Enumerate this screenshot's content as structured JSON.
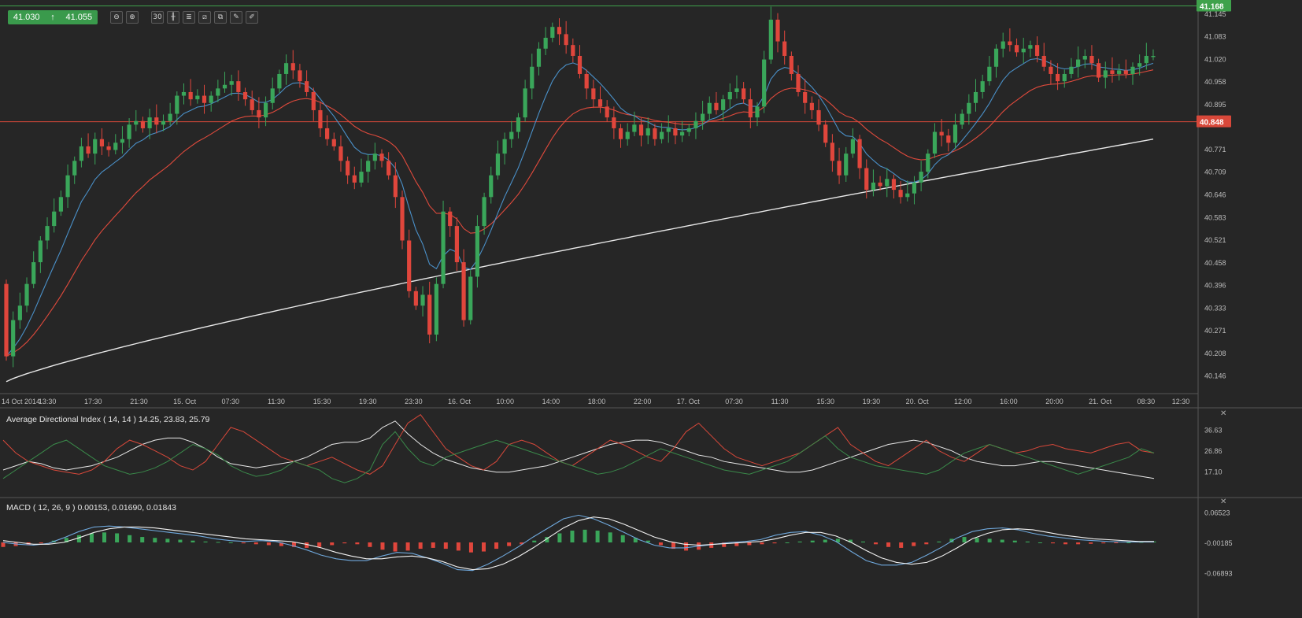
{
  "quote": {
    "bid": "41.030",
    "ask": "41.055",
    "direction_icon": "arrow-up-icon"
  },
  "toolbar": {
    "zoom_out": "−",
    "zoom_in": "+",
    "timeframe": "30",
    "chart_type_icon": "candles-icon",
    "indicators_icon": "indicators-icon",
    "drawing_icon": "draw-icon",
    "clone_icon": "copy-icon",
    "edit_icon": "edit-icon",
    "pen_icon": "pen-icon"
  },
  "colors": {
    "bg": "#262626",
    "bull": "#3aa65a",
    "bear": "#e0463c",
    "ema_fast": "#4a90c8",
    "ema_slow": "#e04a3c",
    "sma_long": "#e8e8e8",
    "hline_green": "#3fa24c",
    "hline_red": "#d8483a",
    "grid": "#3a3a3a"
  },
  "chart_data": [
    {
      "type": "candlestick",
      "title": "",
      "price_axis_ticks": [
        "41.145",
        "41.083",
        "41.020",
        "40.958",
        "40.895",
        "40.771",
        "40.709",
        "40.646",
        "40.583",
        "40.521",
        "40.458",
        "40.396",
        "40.333",
        "40.271",
        "40.208",
        "40.146"
      ],
      "time_axis_ticks": [
        "14 Oct 2014",
        "13:30",
        "17:30",
        "21:30",
        "15. Oct",
        "07:30",
        "11:30",
        "15:30",
        "19:30",
        "23:30",
        "16. Oct",
        "10:00",
        "14:00",
        "18:00",
        "22:00",
        "17. Oct",
        "07:30",
        "11:30",
        "15:30",
        "19:30",
        "20. Oct",
        "12:00",
        "16:00",
        "20:00",
        "21. Oct",
        "08:30",
        "12:30"
      ],
      "ylim": [
        40.11,
        41.18
      ],
      "price_markers": [
        {
          "label": "41.168",
          "value": 41.168,
          "color": "#3fa24c"
        },
        {
          "label": "40.848",
          "value": 40.848,
          "color": "#d8483a"
        }
      ],
      "closes": [
        40.2,
        40.3,
        40.34,
        40.4,
        40.46,
        40.52,
        40.56,
        40.6,
        40.64,
        40.7,
        40.74,
        40.78,
        40.76,
        40.8,
        40.78,
        40.77,
        40.79,
        40.8,
        40.84,
        40.85,
        40.83,
        40.86,
        40.84,
        40.85,
        40.87,
        40.92,
        40.93,
        40.91,
        40.92,
        40.9,
        40.92,
        40.94,
        40.95,
        40.96,
        40.93,
        40.91,
        40.88,
        40.86,
        40.9,
        40.94,
        40.98,
        41.01,
        40.99,
        40.96,
        40.93,
        40.88,
        40.83,
        40.8,
        40.78,
        40.74,
        40.7,
        40.68,
        40.71,
        40.74,
        40.76,
        40.74,
        40.7,
        40.64,
        40.52,
        40.38,
        40.34,
        40.37,
        40.26,
        40.4,
        40.6,
        40.56,
        40.46,
        40.3,
        40.42,
        40.56,
        40.64,
        40.7,
        40.76,
        40.8,
        40.82,
        40.86,
        40.94,
        41.0,
        41.05,
        41.08,
        41.11,
        41.09,
        41.06,
        41.03,
        40.98,
        40.94,
        40.91,
        40.89,
        40.86,
        40.83,
        40.8,
        40.82,
        40.84,
        40.81,
        40.83,
        40.8,
        40.82,
        40.83,
        40.81,
        40.82,
        40.83,
        40.85,
        40.87,
        40.9,
        40.88,
        40.91,
        40.93,
        40.94,
        40.91,
        40.86,
        40.89,
        41.02,
        41.13,
        41.07,
        41.03,
        40.98,
        40.93,
        40.9,
        40.88,
        40.84,
        40.79,
        40.74,
        40.7,
        40.76,
        40.8,
        40.72,
        40.66,
        40.68,
        40.67,
        40.69,
        40.66,
        40.64,
        40.65,
        40.68,
        40.71,
        40.76,
        40.82,
        40.81,
        40.79,
        40.84,
        40.87,
        40.9,
        40.93,
        40.96,
        41.0,
        41.05,
        41.07,
        41.06,
        41.04,
        41.05,
        41.06,
        41.03,
        41.0,
        40.98,
        40.96,
        40.98,
        41.0,
        41.02,
        41.03,
        41.01,
        40.97,
        40.99,
        40.98,
        40.99,
        40.98,
        41.0,
        41.01,
        41.03,
        41.03
      ]
    },
    {
      "type": "line",
      "title": "Average Directional Index ( 14, 14 ) 14.25, 23.83, 25.79",
      "y_ticks": [
        "36.63",
        "26.86",
        "17.10"
      ],
      "ylim": [
        8,
        45
      ],
      "series": [
        {
          "color": "#e8e8e8",
          "values": [
            18,
            20,
            22,
            21,
            19,
            18,
            19,
            20,
            22,
            24,
            27,
            30,
            32,
            33,
            33,
            31,
            28,
            24,
            21,
            20,
            19,
            20,
            21,
            22,
            24,
            27,
            30,
            31,
            31,
            33,
            38,
            41,
            35,
            30,
            26,
            23,
            21,
            19,
            18,
            17,
            17,
            18,
            19,
            20,
            22,
            24,
            26,
            28,
            30,
            31,
            32,
            32,
            31,
            29,
            27,
            25,
            24,
            22,
            21,
            20,
            19,
            18,
            17,
            17,
            18,
            20,
            22,
            24,
            26,
            28,
            30,
            31,
            32,
            31,
            29,
            27,
            24,
            22,
            21,
            20,
            20,
            21,
            22,
            22,
            21,
            20,
            19,
            18,
            17,
            16,
            15,
            14
          ]
        },
        {
          "color": "#d8483a",
          "values": [
            32,
            26,
            22,
            20,
            18,
            17,
            16,
            18,
            22,
            28,
            32,
            30,
            27,
            24,
            20,
            18,
            22,
            30,
            38,
            36,
            32,
            28,
            24,
            22,
            20,
            22,
            24,
            21,
            18,
            16,
            20,
            30,
            40,
            44,
            36,
            28,
            24,
            20,
            18,
            22,
            30,
            32,
            30,
            26,
            22,
            20,
            24,
            28,
            32,
            30,
            27,
            24,
            22,
            28,
            36,
            40,
            34,
            28,
            24,
            22,
            20,
            22,
            24,
            26,
            30,
            34,
            38,
            30,
            26,
            22,
            20,
            24,
            28,
            32,
            27,
            24,
            22,
            26,
            30,
            28,
            26,
            27,
            29,
            30,
            28,
            27,
            26,
            28,
            30,
            31,
            27,
            26
          ]
        },
        {
          "color": "#3a8a4a",
          "values": [
            14,
            18,
            22,
            26,
            30,
            32,
            28,
            24,
            20,
            18,
            16,
            17,
            19,
            22,
            26,
            30,
            28,
            25,
            20,
            17,
            15,
            16,
            18,
            22,
            20,
            18,
            14,
            12,
            14,
            18,
            30,
            36,
            28,
            22,
            20,
            24,
            26,
            28,
            30,
            32,
            30,
            28,
            26,
            24,
            22,
            20,
            18,
            16,
            17,
            19,
            22,
            25,
            28,
            26,
            24,
            22,
            20,
            18,
            17,
            16,
            18,
            20,
            22,
            26,
            30,
            34,
            28,
            24,
            22,
            20,
            19,
            18,
            17,
            16,
            18,
            22,
            26,
            28,
            30,
            28,
            26,
            24,
            22,
            20,
            18,
            16,
            18,
            20,
            22,
            24,
            28,
            26
          ]
        }
      ]
    },
    {
      "type": "bar+line",
      "title": "MACD ( 12, 26, 9 ) 0.00153, 0.01690, 0.01843",
      "y_ticks": [
        "0.06523",
        "-0.00185",
        "-0.06893"
      ],
      "ylim": [
        -0.085,
        0.085
      ],
      "histogram": [
        -0.01,
        -0.008,
        -0.006,
        -0.002,
        0.004,
        0.01,
        0.016,
        0.02,
        0.022,
        0.02,
        0.016,
        0.012,
        0.01,
        0.008,
        0.006,
        0.004,
        0.002,
        0.001,
        0.0,
        -0.002,
        -0.004,
        -0.006,
        -0.008,
        -0.01,
        -0.012,
        -0.01,
        -0.006,
        -0.002,
        -0.004,
        -0.01,
        -0.016,
        -0.02,
        -0.018,
        -0.014,
        -0.012,
        -0.014,
        -0.018,
        -0.022,
        -0.02,
        -0.014,
        -0.008,
        -0.004,
        0.004,
        0.012,
        0.02,
        0.026,
        0.028,
        0.026,
        0.022,
        0.016,
        0.01,
        0.004,
        -0.006,
        -0.014,
        -0.018,
        -0.016,
        -0.012,
        -0.01,
        -0.008,
        -0.006,
        -0.004,
        -0.002,
        0.0,
        0.002,
        0.004,
        0.006,
        0.008,
        0.006,
        0.002,
        -0.004,
        -0.01,
        -0.012,
        -0.008,
        -0.004,
        0.002,
        0.008,
        0.012,
        0.01,
        0.008,
        0.006,
        0.004,
        0.002,
        0.0,
        -0.002,
        -0.004,
        -0.004,
        -0.003,
        -0.002,
        -0.001,
        0.0,
        0.001,
        0.002
      ],
      "series": [
        {
          "name": "",
          "color": "#6fa8dc",
          "values": [
            0.0,
            -0.004,
            -0.006,
            -0.002,
            0.01,
            0.024,
            0.034,
            0.036,
            0.034,
            0.03,
            0.026,
            0.022,
            0.018,
            0.014,
            0.008,
            0.004,
            0.002,
            0.004,
            0.002,
            -0.006,
            -0.016,
            -0.028,
            -0.036,
            -0.04,
            -0.04,
            -0.03,
            -0.022,
            -0.024,
            -0.034,
            -0.046,
            -0.06,
            -0.062,
            -0.048,
            -0.03,
            -0.01,
            0.012,
            0.032,
            0.052,
            0.06,
            0.052,
            0.038,
            0.022,
            0.006,
            -0.006,
            -0.012,
            -0.012,
            -0.008,
            -0.004,
            0.0,
            0.002,
            0.006,
            0.016,
            0.022,
            0.024,
            0.016,
            0.002,
            -0.02,
            -0.04,
            -0.05,
            -0.05,
            -0.044,
            -0.028,
            -0.01,
            0.01,
            0.024,
            0.03,
            0.032,
            0.028,
            0.02,
            0.014,
            0.01,
            0.006,
            0.004,
            0.002,
            0.001,
            0.001,
            0.001
          ]
        },
        {
          "name": "",
          "color": "#f2f2f2",
          "values": [
            0.004,
            0.0,
            -0.004,
            -0.004,
            0.0,
            0.01,
            0.022,
            0.03,
            0.034,
            0.034,
            0.032,
            0.028,
            0.024,
            0.02,
            0.016,
            0.012,
            0.008,
            0.006,
            0.004,
            0.002,
            -0.004,
            -0.012,
            -0.022,
            -0.03,
            -0.036,
            -0.036,
            -0.032,
            -0.03,
            -0.034,
            -0.042,
            -0.054,
            -0.06,
            -0.058,
            -0.048,
            -0.032,
            -0.012,
            0.01,
            0.032,
            0.048,
            0.056,
            0.052,
            0.04,
            0.026,
            0.012,
            0.002,
            -0.004,
            -0.006,
            -0.004,
            -0.002,
            0.0,
            0.002,
            0.008,
            0.016,
            0.022,
            0.022,
            0.014,
            0.0,
            -0.018,
            -0.034,
            -0.044,
            -0.048,
            -0.044,
            -0.03,
            -0.012,
            0.008,
            0.02,
            0.028,
            0.03,
            0.028,
            0.022,
            0.016,
            0.012,
            0.008,
            0.006,
            0.004,
            0.002,
            0.002
          ]
        }
      ]
    }
  ]
}
